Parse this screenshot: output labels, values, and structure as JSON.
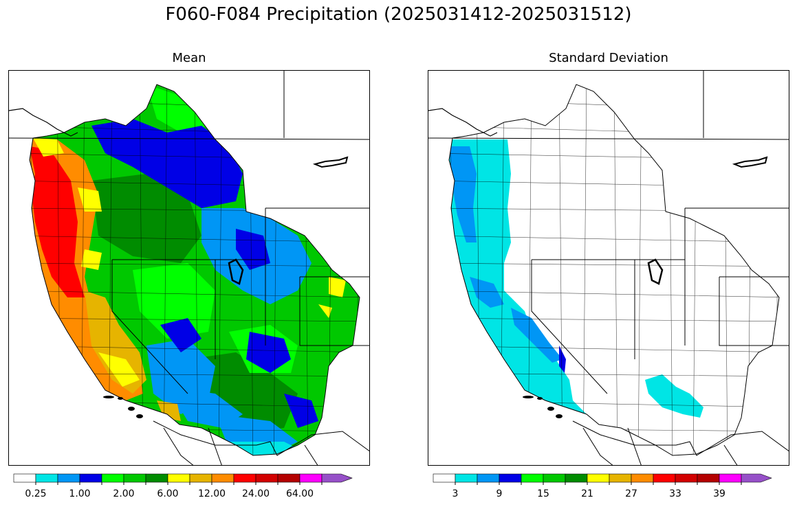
{
  "title": "F060-F084 Precipitation (2025031412-2025031512)",
  "panels": [
    {
      "title": "Mean",
      "colorbar": {
        "colors": [
          "#ffffff",
          "#00e5e5",
          "#0096f5",
          "#0000e6",
          "#00ff00",
          "#00c800",
          "#008c00",
          "#ffff00",
          "#e6b400",
          "#ff8c00",
          "#ff0000",
          "#d20000",
          "#b40000",
          "#ff00ff",
          "#9650c8"
        ],
        "tick_labels": [
          "0.25",
          "1.00",
          "2.00",
          "6.00",
          "12.00",
          "24.00",
          "64.00"
        ],
        "extend": "max"
      }
    },
    {
      "title": "Standard Deviation",
      "colorbar": {
        "colors": [
          "#ffffff",
          "#00e5e5",
          "#0096f5",
          "#0000e6",
          "#00ff00",
          "#00c800",
          "#008c00",
          "#ffff00",
          "#e6b400",
          "#ff8c00",
          "#ff0000",
          "#d20000",
          "#b40000",
          "#ff00ff",
          "#9650c8"
        ],
        "tick_labels": [
          "3",
          "9",
          "15",
          "21",
          "27",
          "33",
          "39"
        ],
        "extend": "max"
      }
    }
  ]
}
